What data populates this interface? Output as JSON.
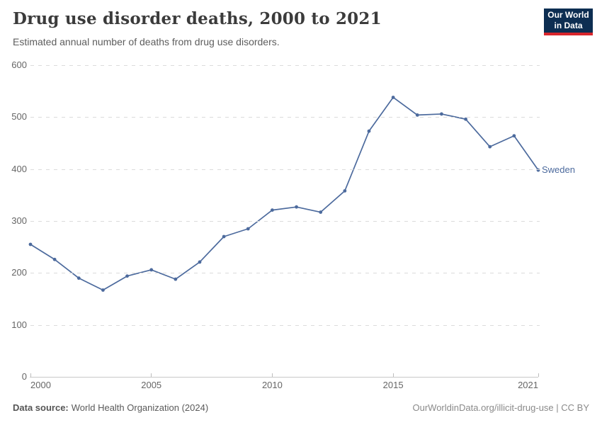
{
  "header": {
    "title": "Drug use disorder deaths, 2000 to 2021",
    "subtitle": "Estimated annual number of deaths from drug use disorders.",
    "logo": {
      "line1": "Our World",
      "line2": "in Data",
      "bg_color": "#0d2e52",
      "accent_color": "#d8252c"
    }
  },
  "chart_data": {
    "type": "line",
    "title": "Drug use disorder deaths, 2000 to 2021",
    "xlabel": "",
    "ylabel": "",
    "x": [
      2000,
      2001,
      2002,
      2003,
      2004,
      2005,
      2006,
      2007,
      2008,
      2009,
      2010,
      2011,
      2012,
      2013,
      2014,
      2015,
      2016,
      2017,
      2018,
      2019,
      2020,
      2021
    ],
    "series": [
      {
        "name": "Sweden",
        "color": "#4c6a9d",
        "values": [
          255,
          226,
          190,
          167,
          194,
          206,
          188,
          221,
          270,
          285,
          321,
          327,
          317,
          358,
          473,
          538,
          504,
          506,
          496,
          443,
          464,
          398
        ]
      }
    ],
    "xticks": [
      2000,
      2005,
      2010,
      2015,
      2021
    ],
    "yticks": [
      0,
      100,
      200,
      300,
      400,
      500,
      600
    ],
    "ylim": [
      0,
      600
    ],
    "grid": "horizontal-dashed",
    "legend_position": "end-of-line-label"
  },
  "footer": {
    "source_label": "Data source:",
    "source_text": "World Health Organization (2024)",
    "rights": "OurWorldinData.org/illicit-drug-use | CC BY"
  }
}
